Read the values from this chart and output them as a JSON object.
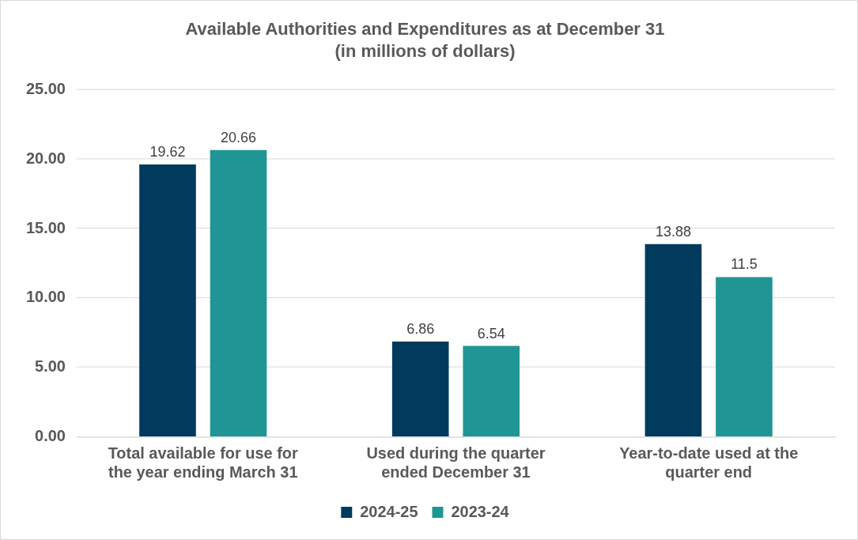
{
  "chart_data": {
    "type": "bar",
    "title": "Available Authorities and Expenditures as at December 31",
    "subtitle": "(in millions of dollars)",
    "categories": [
      "Total available for use for the year ending March 31",
      "Used during the quarter ended December 31",
      "Year-to-date used at the quarter end"
    ],
    "series": [
      {
        "name": "2024-25",
        "color": "#003a5d",
        "values": [
          19.62,
          6.86,
          13.88
        ]
      },
      {
        "name": "2023-24",
        "color": "#1f9694",
        "values": [
          20.66,
          6.54,
          11.5
        ]
      }
    ],
    "ylim": [
      0,
      25
    ],
    "yticks": [
      {
        "value": 0,
        "label": "0.00"
      },
      {
        "value": 5,
        "label": "5.00"
      },
      {
        "value": 10,
        "label": "10.00"
      },
      {
        "value": 15,
        "label": "15.00"
      },
      {
        "value": 20,
        "label": "20.00"
      },
      {
        "value": 25,
        "label": "25.00"
      }
    ],
    "grid": "y",
    "legend": "bottom",
    "data_labels": true
  }
}
